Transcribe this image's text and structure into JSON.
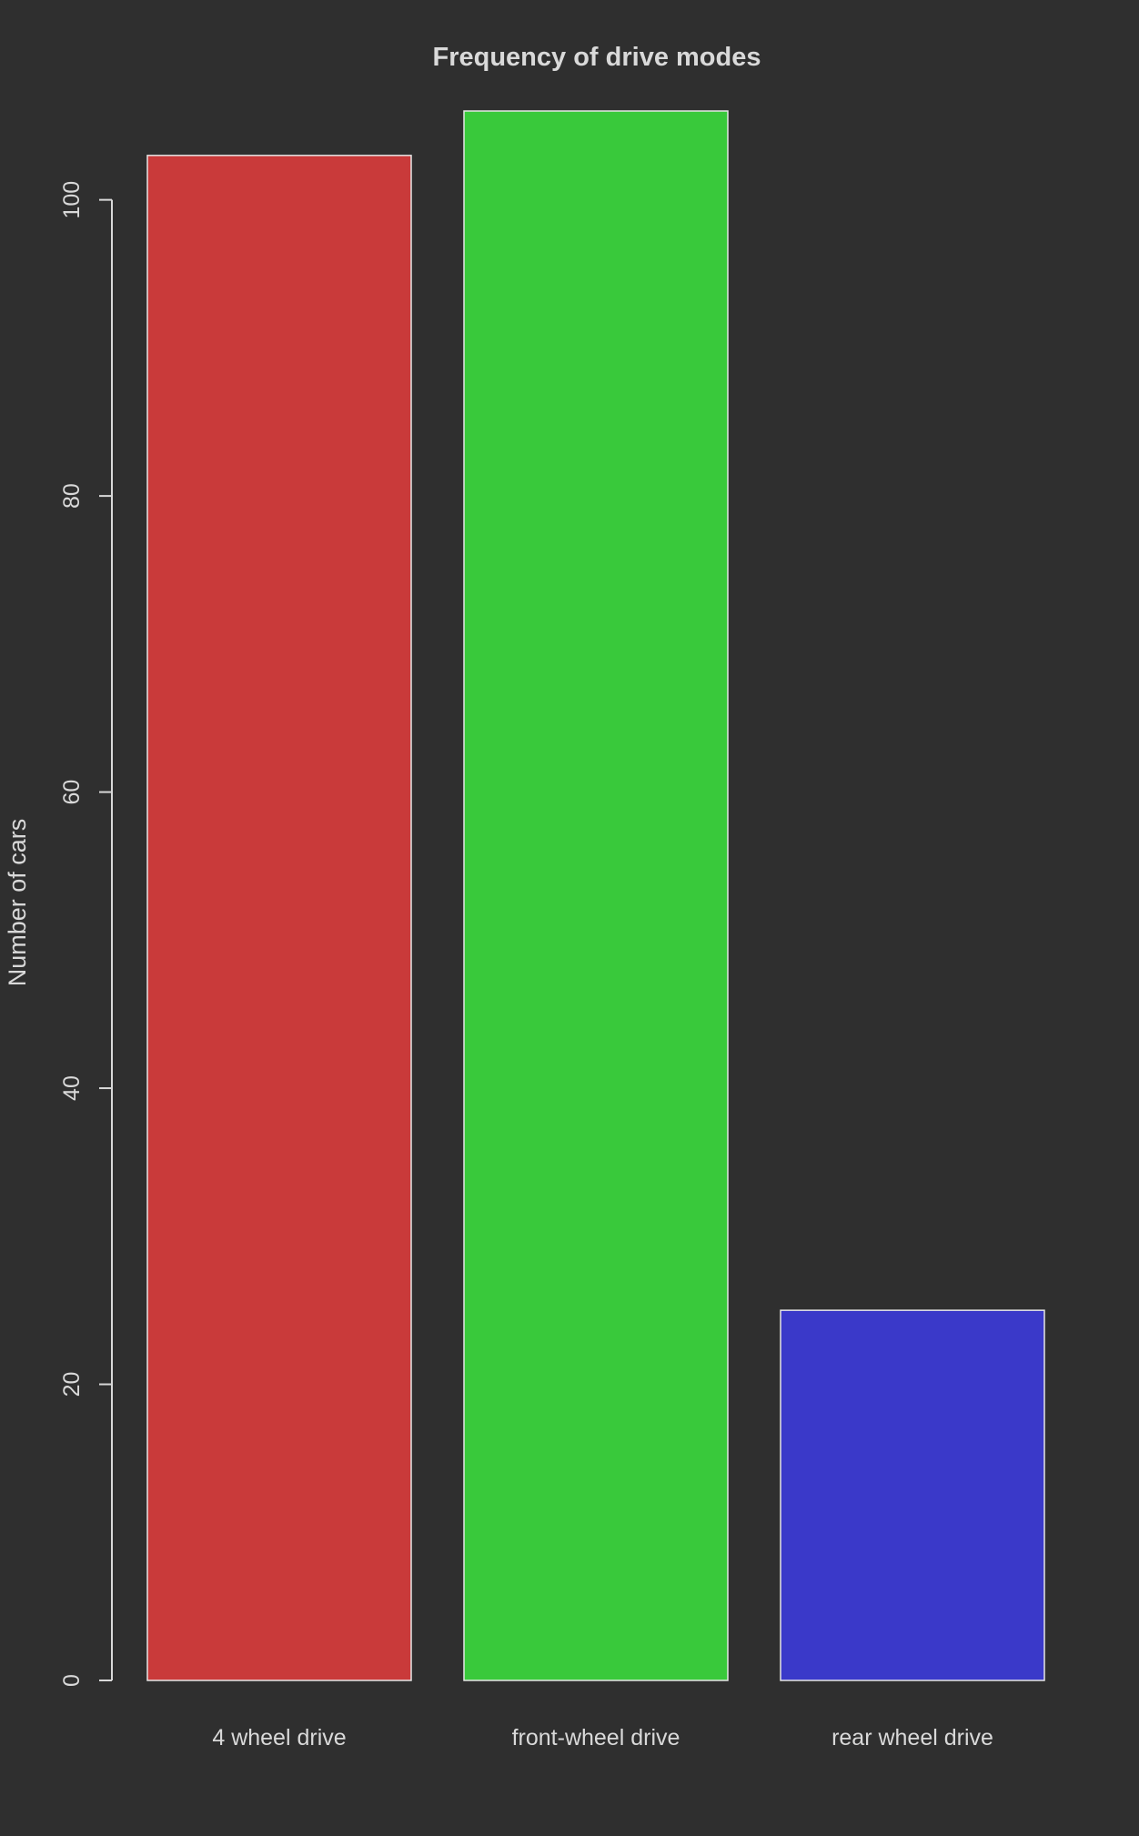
{
  "chart_data": {
    "type": "bar",
    "title": "Frequency of drive modes",
    "xlabel": "",
    "ylabel": "Number of cars",
    "categories": [
      "4 wheel drive",
      "front-wheel drive",
      "rear wheel drive"
    ],
    "values": [
      103,
      106,
      25
    ],
    "colors": [
      "#c93a3a",
      "#39c93b",
      "#3a39c9"
    ],
    "ylim": [
      0,
      106
    ],
    "yticks": [
      0,
      20,
      40,
      60,
      80,
      100
    ],
    "ytick_labels": [
      "0",
      "20",
      "40",
      "60",
      "80",
      "100"
    ],
    "background": "#2f2f2f",
    "foreground": "#d9d9d9"
  }
}
